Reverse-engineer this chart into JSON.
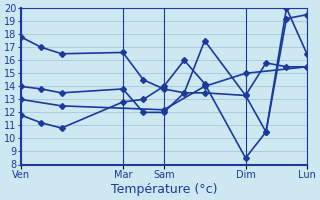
{
  "background_color": "#cde8f0",
  "grid_color": "#aaccdd",
  "line_color": "#1a3a9c",
  "ylim": [
    8,
    20
  ],
  "xlim": [
    0,
    14
  ],
  "yticks": [
    8,
    9,
    10,
    11,
    12,
    13,
    14,
    15,
    16,
    17,
    18,
    19,
    20
  ],
  "day_positions": [
    0,
    5,
    7,
    11,
    14
  ],
  "day_labels": [
    "Ven",
    "Mar",
    "Sam",
    "Dim",
    "Lun"
  ],
  "lines": [
    {
      "x": [
        0,
        1,
        2,
        5,
        6,
        7,
        8,
        9,
        11,
        12,
        13,
        14
      ],
      "y": [
        17.8,
        17.0,
        16.5,
        16.6,
        14.5,
        13.8,
        13.5,
        13.5,
        13.3,
        15.8,
        15.5,
        15.5
      ]
    },
    {
      "x": [
        0,
        1,
        2,
        5,
        6,
        7,
        8,
        9,
        11,
        12,
        13,
        14
      ],
      "y": [
        14.0,
        13.8,
        13.5,
        13.8,
        12.0,
        12.0,
        13.5,
        17.5,
        13.3,
        10.5,
        19.2,
        19.5
      ]
    },
    {
      "x": [
        0,
        1,
        2,
        5,
        6,
        7,
        8,
        9,
        11,
        12,
        13,
        14
      ],
      "y": [
        11.8,
        11.2,
        10.8,
        12.8,
        13.0,
        14.0,
        16.0,
        14.2,
        8.5,
        10.5,
        20.0,
        16.5
      ]
    },
    {
      "x": [
        0,
        2,
        7,
        9,
        11,
        14
      ],
      "y": [
        13.0,
        12.5,
        12.2,
        14.0,
        15.0,
        15.5
      ]
    }
  ],
  "xlabel": "Température (°c)",
  "marker": "D",
  "marker_size": 3.0,
  "line_width": 1.2,
  "tick_label_fontsize": 7,
  "xlabel_fontsize": 9
}
